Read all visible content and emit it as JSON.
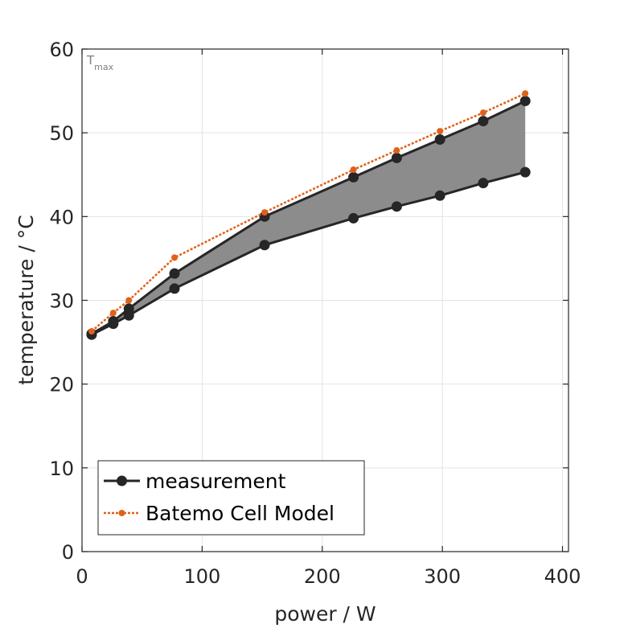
{
  "chart_data": {
    "type": "line",
    "title": "",
    "xlabel": "power / W",
    "ylabel": "temperature / °C",
    "xlim": [
      0,
      405
    ],
    "ylim": [
      0,
      60
    ],
    "xticks": [
      0,
      100,
      200,
      300,
      400
    ],
    "yticks": [
      0,
      10,
      20,
      30,
      40,
      50,
      60
    ],
    "grid": true,
    "legend_position": "bottom-left",
    "annotation": {
      "main": "T",
      "sub": "max"
    },
    "series": [
      {
        "name": "measurement",
        "color": "#262626",
        "style": "solid-circle",
        "x": [
          8,
          26,
          39,
          77,
          152,
          226,
          262,
          298,
          334,
          369
        ],
        "y": [
          26.0,
          27.5,
          29.0,
          33.2,
          40.0,
          44.7,
          47.0,
          49.2,
          51.4,
          53.8
        ]
      },
      {
        "name": "",
        "color": "#262626",
        "style": "solid-circle",
        "x": [
          8,
          26,
          39,
          77,
          152,
          226,
          262,
          298,
          334,
          369
        ],
        "y": [
          25.9,
          27.2,
          28.2,
          31.4,
          36.6,
          39.8,
          41.2,
          42.5,
          44.0,
          45.3
        ]
      },
      {
        "name": "Batemo Cell Model",
        "color": "#E0611A",
        "style": "dotted-dot",
        "x": [
          8,
          26,
          39,
          77,
          152,
          226,
          262,
          298,
          334,
          369
        ],
        "y": [
          26.3,
          28.5,
          30.0,
          35.1,
          40.5,
          45.6,
          47.9,
          50.2,
          52.4,
          54.7
        ]
      }
    ],
    "fill_color": "#8c8c8c"
  }
}
